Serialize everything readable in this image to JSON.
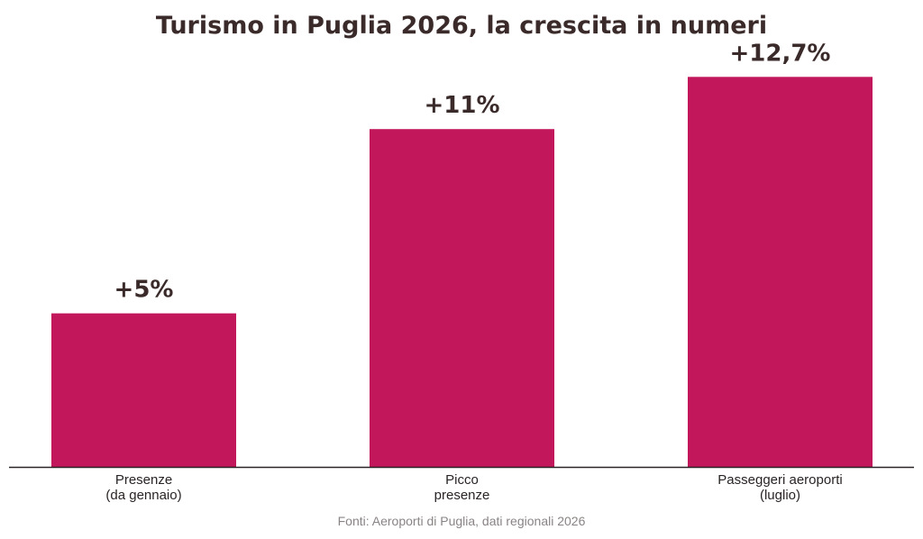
{
  "colors": {
    "bar": "#c2185b",
    "title": "#3a2a2a",
    "value_label": "#3a2a2a",
    "category_label": "#2a2424",
    "axis": "#2a2424",
    "source": "#8a8484",
    "background": "#ffffff"
  },
  "chart_data": {
    "type": "bar",
    "title": "Turismo in Puglia 2026, la crescita in numeri",
    "categories": [
      [
        "Presenze",
        "(da gennaio)"
      ],
      [
        "Picco",
        "presenze"
      ],
      [
        "Passeggeri aeroporti",
        "(luglio)"
      ]
    ],
    "values": [
      5,
      11,
      12.7
    ],
    "value_labels": [
      "+5%",
      "+11%",
      "+12,7%"
    ],
    "ylim": [
      0,
      14
    ],
    "xlabel": "",
    "ylabel": "",
    "grid": false,
    "legend": "none"
  },
  "source": "Fonti: Aeroporti di Puglia, dati regionali 2026"
}
